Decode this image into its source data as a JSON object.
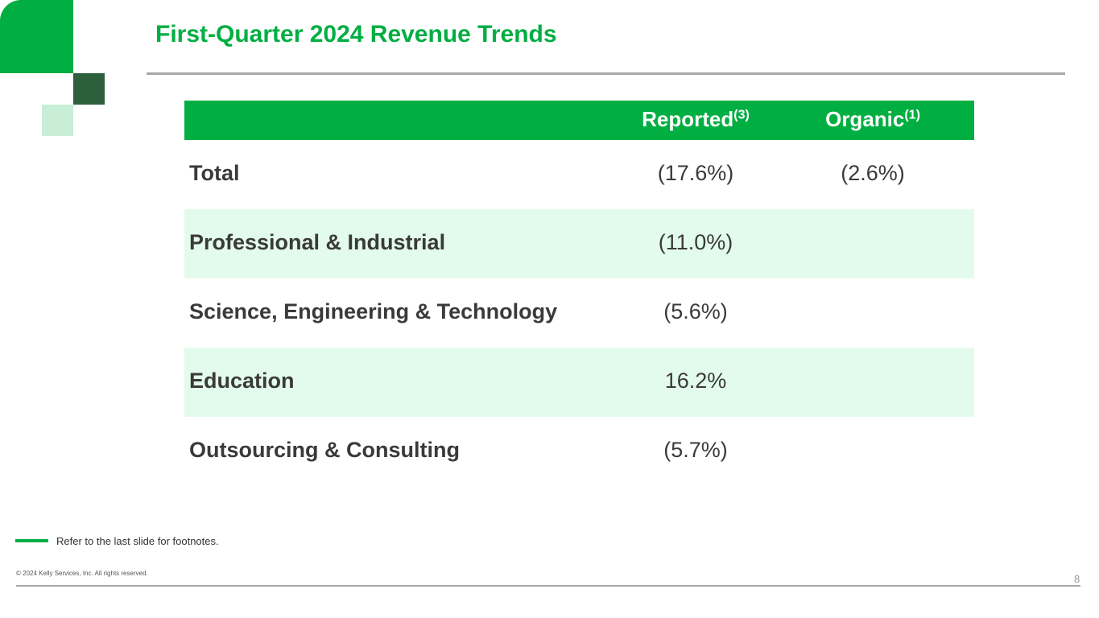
{
  "title": "First-Quarter 2024 Revenue Trends",
  "table": {
    "headers": {
      "reported": "Reported",
      "reported_note": "(3)",
      "organic": "Organic",
      "organic_note": "(1)"
    },
    "rows": [
      {
        "label": "Total",
        "reported": "(17.6%)",
        "organic": "(2.6%)"
      },
      {
        "label": "Professional & Industrial",
        "reported": "(11.0%)",
        "organic": ""
      },
      {
        "label": "Science, Engineering & Technology",
        "reported": "(5.6%)",
        "organic": ""
      },
      {
        "label": "Education",
        "reported": "16.2%",
        "organic": ""
      },
      {
        "label": "Outsourcing & Consulting",
        "reported": "(5.7%)",
        "organic": ""
      }
    ]
  },
  "footnote": "Refer to the last slide for footnotes.",
  "copyright": "© 2024 Kelly Services, Inc. All rights reserved.",
  "page_number": "8",
  "colors": {
    "brand_green": "#00ae42",
    "dark_green": "#2d5f3c",
    "light_green": "#c8eed6",
    "row_alt": "#e3fbec"
  }
}
